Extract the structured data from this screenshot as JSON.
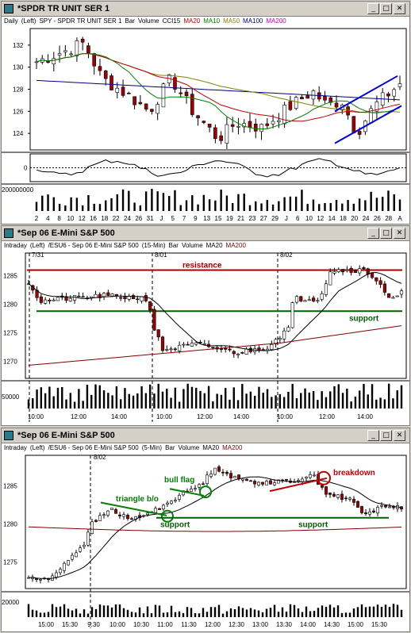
{
  "windows": [
    {
      "title": "*SPDR TR UNIT SER 1",
      "legend": [
        {
          "text": "Daily",
          "color": "#000"
        },
        {
          "text": "(Left)",
          "color": "#000"
        },
        {
          "text": "SPY - SPDR TR UNIT SER 1",
          "color": "#000"
        },
        {
          "text": "Bar",
          "color": "#000"
        },
        {
          "text": "Volume",
          "color": "#000"
        },
        {
          "text": "CCI15",
          "color": "#000"
        },
        {
          "text": "MA20",
          "color": "#c00000"
        },
        {
          "text": "MA10",
          "color": "#008000"
        },
        {
          "text": "MA50",
          "color": "#808000"
        },
        {
          "text": "MA100",
          "color": "#000080"
        },
        {
          "text": "MA200",
          "color": "#c000c0"
        }
      ],
      "y_ticks": [
        "132",
        "130",
        "128",
        "126",
        "124"
      ],
      "x_ticks": [
        "2",
        "4",
        "8",
        "10",
        "12",
        "16",
        "18",
        "22",
        "24",
        "26",
        "31",
        "J",
        "5",
        "7",
        "9",
        "13",
        "15",
        "19",
        "21",
        "23",
        "27",
        "29",
        "J",
        "6",
        "10",
        "12",
        "14",
        "18",
        "20",
        "24",
        "26",
        "28",
        "A"
      ],
      "cci_tick": "0",
      "volume_tick": "200000000"
    },
    {
      "title": "*Sep 06  E-Mini S&P 500",
      "legend": [
        {
          "text": "Intraday",
          "color": "#000"
        },
        {
          "text": "(Left)",
          "color": "#000"
        },
        {
          "text": "/ESU6 - Sep 06  E-Mini S&P 500",
          "color": "#000"
        },
        {
          "text": "(15-Min)",
          "color": "#000"
        },
        {
          "text": "Bar",
          "color": "#000"
        },
        {
          "text": "Volume",
          "color": "#000"
        },
        {
          "text": "MA20",
          "color": "#000"
        },
        {
          "text": "MA200",
          "color": "#800000"
        }
      ],
      "date_labels": [
        "7/31",
        "8/01",
        "8/02"
      ],
      "y_ticks": [
        "1285",
        "1280",
        "1275",
        "1270"
      ],
      "x_ticks": [
        "10:00",
        "12:00",
        "14:00",
        "10:00",
        "12:00",
        "14:00",
        "10:00",
        "12:00",
        "14:00"
      ],
      "volume_tick": "50000",
      "annotations": {
        "resistance": "resistance",
        "support": "support"
      }
    },
    {
      "title": "*Sep 06  E-Mini S&P 500",
      "legend": [
        {
          "text": "Intraday",
          "color": "#000"
        },
        {
          "text": "(Left)",
          "color": "#000"
        },
        {
          "text": "/ESU6 - Sep 06  E-Mini S&P 500",
          "color": "#000"
        },
        {
          "text": "(5-Min)",
          "color": "#000"
        },
        {
          "text": "Bar",
          "color": "#000"
        },
        {
          "text": "Volume",
          "color": "#000"
        },
        {
          "text": "MA20",
          "color": "#000"
        },
        {
          "text": "MA200",
          "color": "#800000"
        }
      ],
      "date_labels": [
        "8/02"
      ],
      "y_ticks": [
        "1285",
        "1280",
        "1275"
      ],
      "x_ticks": [
        "15:00",
        "15:30",
        "9:30",
        "10:00",
        "10:30",
        "11:00",
        "11:30",
        "12:00",
        "12:30",
        "13:00",
        "13:30",
        "14:00",
        "14:30",
        "15:00",
        "15:30"
      ],
      "volume_tick": "20000",
      "annotations": {
        "triangle": "triangle b/o",
        "bullflag": "bull flag",
        "support1": "support",
        "support2": "support",
        "breakdown": "breakdown"
      }
    }
  ],
  "buttons": {
    "minimize": "_",
    "maximize": "□",
    "close": "✕"
  },
  "colors": {
    "up_candle": "#ffffff",
    "down_candle": "#a00000",
    "resistance": "#a00000",
    "support": "#006000",
    "channel": "#0000e0",
    "annotation_green": "#008000",
    "annotation_red": "#c00000"
  }
}
